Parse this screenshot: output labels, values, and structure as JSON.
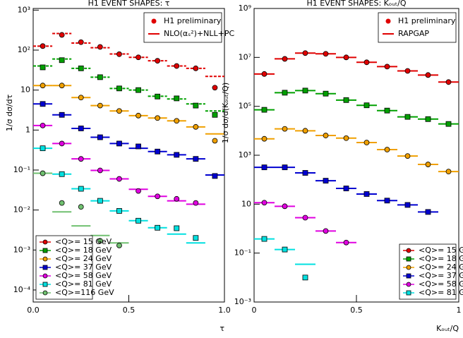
{
  "chart_data": [
    {
      "type": "scatter",
      "title": "H1 EVENT SHAPES: τ",
      "ylabel": "1/σ dσ/dτ",
      "xlabel": "τ",
      "log_y": true,
      "xlim": [
        0,
        1
      ],
      "xticks": [
        {
          "value": 0,
          "label": "0.0"
        },
        0.5,
        {
          "value": 1,
          "label": "1.0"
        }
      ],
      "ylim": [
        5e-05,
        1100
      ],
      "yticks": [
        {
          "value": 0.0001,
          "label": "10⁻⁴"
        },
        {
          "value": 0.001,
          "label": "10⁻³"
        },
        {
          "value": 0.01,
          "label": "10⁻²"
        },
        {
          "value": 0.1,
          "label": "10⁻¹"
        },
        1,
        10,
        {
          "value": 100,
          "label": "10²"
        },
        {
          "value": 1000,
          "label": "10³"
        }
      ],
      "annotations": [
        "H1 preliminary",
        "NLO(αₛ²)+NLL+PC"
      ],
      "legend": "lower left",
      "x": [
        0.05,
        0.15,
        0.25,
        0.35,
        0.45,
        0.55,
        0.65,
        0.75,
        0.85,
        0.95
      ],
      "series": [
        {
          "name": "<Q>= 15 GeV",
          "color": "#e00000",
          "marker": "circle",
          "dashed": true,
          "values": [
            126,
            240,
            158,
            120,
            79,
            66,
            54,
            40,
            35,
            11.5
          ],
          "theory": [
            126,
            260,
            150,
            115,
            80,
            66,
            54,
            40,
            35,
            22
          ]
        },
        {
          "name": "<Q>= 18 GeV",
          "color": "#00a000",
          "marker": "square",
          "dashed": true,
          "values": [
            37,
            56,
            35,
            21,
            11,
            10,
            6.9,
            6.2,
            4.1,
            2.4
          ],
          "theory": [
            40,
            60,
            35,
            21,
            11,
            10,
            7,
            6,
            4.5,
            3
          ]
        },
        {
          "name": "<Q>= 24 GeV",
          "color": "#f0a000",
          "marker": "circle",
          "dashed": false,
          "values": [
            13,
            13,
            6.5,
            4.1,
            3.0,
            2.3,
            2.0,
            1.7,
            1.2,
            0.54
          ],
          "theory": [
            13,
            13,
            6.5,
            4.1,
            3.0,
            2.3,
            2.0,
            1.7,
            1.2,
            0.8
          ]
        },
        {
          "name": "<Q>= 37 GeV",
          "color": "#0000d0",
          "marker": "square",
          "dashed": false,
          "values": [
            4.5,
            2.4,
            1.1,
            0.66,
            0.46,
            0.39,
            0.29,
            0.24,
            0.19,
            0.071
          ],
          "theory": [
            4.5,
            2.4,
            1.1,
            0.66,
            0.46,
            0.35,
            0.29,
            0.24,
            0.19,
            0.075
          ]
        },
        {
          "name": "<Q>= 58 GeV",
          "color": "#e000e0",
          "marker": "circle",
          "dashed": false,
          "values": [
            1.3,
            0.46,
            0.19,
            0.098,
            0.06,
            0.03,
            0.022,
            0.019,
            0.015,
            null
          ],
          "theory": [
            1.3,
            0.46,
            0.19,
            0.098,
            0.06,
            0.033,
            0.022,
            0.017,
            0.014,
            null
          ]
        },
        {
          "name": "<Q>= 81 GeV",
          "color": "#00e0e0",
          "marker": "square",
          "dashed": false,
          "values": [
            0.35,
            0.079,
            0.034,
            0.017,
            0.0095,
            0.0054,
            0.0036,
            0.0035,
            0.002,
            null
          ],
          "theory": [
            0.35,
            0.079,
            0.034,
            0.017,
            0.0095,
            0.0054,
            0.0036,
            0.0025,
            0.0015,
            null
          ]
        },
        {
          "name": "<Q>=116 GeV",
          "color": "#70c070",
          "marker": "circle",
          "dashed": false,
          "values": [
            0.083,
            0.015,
            0.012,
            0.0017,
            0.0013,
            null,
            null,
            null,
            null,
            null
          ],
          "theory": [
            0.083,
            0.009,
            0.004,
            0.0023,
            0.0015,
            null,
            null,
            null,
            null,
            null
          ]
        }
      ]
    },
    {
      "type": "scatter",
      "title": "H1 EVENT SHAPES: Kₒᵤₜ/Q",
      "ylabel": "1/σ dσ/d(Kₒᵤₜ/Q)",
      "xlabel": "Kₒᵤₜ/Q",
      "log_y": true,
      "xlim": [
        0,
        1
      ],
      "xticks": [
        0,
        0.5,
        1
      ],
      "ylim": [
        0.001,
        1000000000
      ],
      "yticks": [
        {
          "value": 0.001,
          "label": "10⁻³"
        },
        {
          "value": 0.1,
          "label": "10⁻¹"
        },
        10,
        {
          "value": 1000,
          "label": "10³"
        },
        {
          "value": 100000,
          "label": "10⁵"
        },
        {
          "value": 10000000,
          "label": "10⁷"
        },
        {
          "value": 1000000000,
          "label": "10⁹"
        }
      ],
      "annotations": [
        "H1 preliminary",
        "RAPGAP"
      ],
      "legend": "lower right",
      "x": [
        0.05,
        0.15,
        0.25,
        0.35,
        0.45,
        0.55,
        0.65,
        0.75,
        0.85,
        0.95
      ],
      "series": [
        {
          "name": "<Q>= 15 GeV",
          "color": "#e00000",
          "marker": "circle",
          "dashed": false,
          "values": [
            2100000,
            8700000,
            15000000,
            14000000,
            10000000,
            6300000,
            4200000,
            2800000,
            1900000,
            980000
          ],
          "theory": [
            2100000,
            8700000,
            15000000,
            14000000,
            10000000,
            6300000,
            4200000,
            2800000,
            1900000,
            980000
          ]
        },
        {
          "name": "<Q>= 18 GeV",
          "color": "#00a000",
          "marker": "square",
          "dashed": false,
          "values": [
            72000,
            360000,
            440000,
            330000,
            180000,
            110000,
            67000,
            37000,
            30000,
            19000
          ],
          "theory": [
            72000,
            360000,
            440000,
            330000,
            180000,
            110000,
            67000,
            37000,
            30000,
            19000
          ]
        },
        {
          "name": "<Q>= 24 GeV",
          "color": "#f0a000",
          "marker": "circle",
          "dashed": false,
          "values": [
            4700,
            12000,
            10000,
            6400,
            5000,
            3300,
            1700,
            930,
            420,
            215
          ],
          "theory": [
            4700,
            12000,
            10000,
            6400,
            5000,
            3300,
            1700,
            930,
            420,
            215
          ]
        },
        {
          "name": "<Q>= 37 GeV",
          "color": "#0000d0",
          "marker": "square",
          "dashed": false,
          "values": [
            320,
            320,
            190,
            91,
            44,
            26,
            14,
            9.3,
            4.8,
            null
          ],
          "theory": [
            320,
            320,
            190,
            91,
            44,
            26,
            14,
            9.3,
            4.8,
            null
          ]
        },
        {
          "name": "<Q>= 58 GeV",
          "color": "#e000e0",
          "marker": "circle",
          "dashed": false,
          "values": [
            11.5,
            8.2,
            2.8,
            0.8,
            0.27,
            null,
            null,
            null,
            null,
            null
          ],
          "theory": [
            11.5,
            8.2,
            2.8,
            0.8,
            0.27,
            null,
            null,
            null,
            null,
            null
          ]
        },
        {
          "name": "<Q>= 81 GeV",
          "color": "#00e0e0",
          "marker": "square",
          "dashed": false,
          "values": [
            0.38,
            0.14,
            0.01,
            null,
            null,
            null,
            null,
            null,
            null,
            null
          ],
          "theory": [
            0.38,
            0.14,
            0.035,
            null,
            null,
            null,
            null,
            null,
            null,
            null
          ]
        }
      ]
    }
  ]
}
